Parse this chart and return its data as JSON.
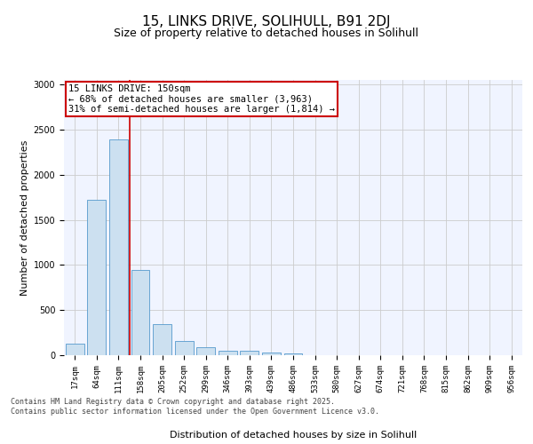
{
  "title1": "15, LINKS DRIVE, SOLIHULL, B91 2DJ",
  "title2": "Size of property relative to detached houses in Solihull",
  "xlabel": "Distribution of detached houses by size in Solihull",
  "ylabel": "Number of detached properties",
  "bar_values": [
    130,
    1720,
    2390,
    940,
    340,
    155,
    90,
    50,
    45,
    30,
    20,
    0,
    0,
    0,
    0,
    0,
    0,
    0,
    0,
    0,
    0
  ],
  "categories": [
    "17sqm",
    "64sqm",
    "111sqm",
    "158sqm",
    "205sqm",
    "252sqm",
    "299sqm",
    "346sqm",
    "393sqm",
    "439sqm",
    "486sqm",
    "533sqm",
    "580sqm",
    "627sqm",
    "674sqm",
    "721sqm",
    "768sqm",
    "815sqm",
    "862sqm",
    "909sqm",
    "956sqm"
  ],
  "bar_color": "#cce0f0",
  "bar_edge_color": "#5599cc",
  "vline_color": "#cc0000",
  "annotation_text": "15 LINKS DRIVE: 150sqm\n← 68% of detached houses are smaller (3,963)\n31% of semi-detached houses are larger (1,814) →",
  "annotation_box_color": "#cc0000",
  "ylim": [
    0,
    3050
  ],
  "yticks": [
    0,
    500,
    1000,
    1500,
    2000,
    2500,
    3000
  ],
  "grid_color": "#cccccc",
  "bg_color": "#f0f4ff",
  "footer_text": "Contains HM Land Registry data © Crown copyright and database right 2025.\nContains public sector information licensed under the Open Government Licence v3.0.",
  "title1_fontsize": 11,
  "title2_fontsize": 9,
  "tick_fontsize": 6.5,
  "label_fontsize": 8,
  "annotation_fontsize": 7.5,
  "footer_fontsize": 6
}
